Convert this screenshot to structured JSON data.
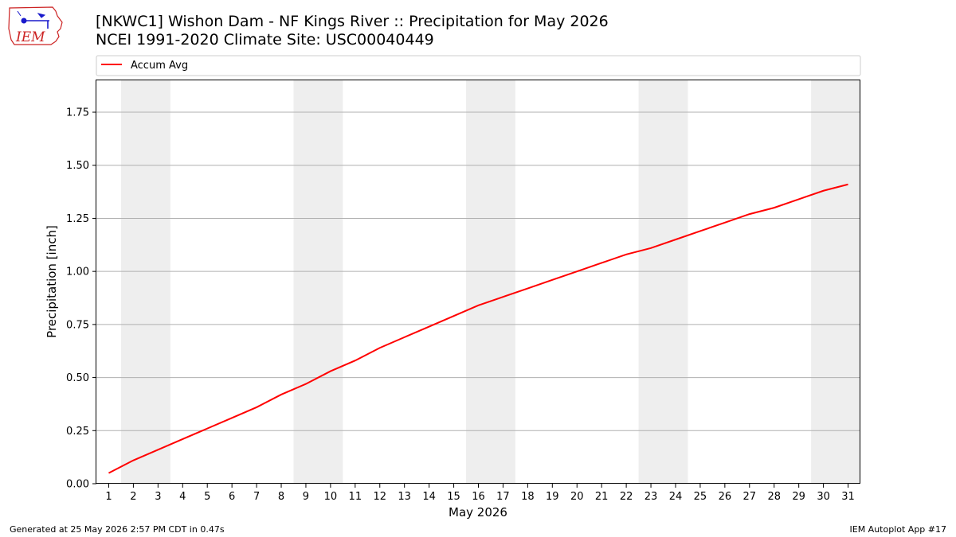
{
  "header": {
    "title_line1": "[NKWC1] Wishon Dam - NF Kings River :: Precipitation for May 2026",
    "title_line2": "NCEI 1991-2020 Climate Site: USC00040449"
  },
  "logo": {
    "text": "IEM",
    "icon": "iem-state-logo-icon"
  },
  "footer": {
    "left": "Generated at 25 May 2026 2:57 PM CDT in 0.47s",
    "right": "IEM Autoplot App #17"
  },
  "colors": {
    "series": "#ff0000",
    "weekend_band": "#eeeeee",
    "grid": "#b0b0b0",
    "logo_red": "#cc2222",
    "logo_blue": "#1a1acc"
  },
  "chart_data": {
    "type": "line",
    "xlabel": "May 2026",
    "ylabel": "Precipitation [inch]",
    "xlim": [
      0.5,
      31.5
    ],
    "ylim": [
      0,
      1.9
    ],
    "yticks": [
      0.0,
      0.25,
      0.5,
      0.75,
      1.0,
      1.25,
      1.5,
      1.75
    ],
    "ytick_labels": [
      "0.00",
      "0.25",
      "0.50",
      "0.75",
      "1.00",
      "1.25",
      "1.50",
      "1.75"
    ],
    "x": [
      1,
      2,
      3,
      4,
      5,
      6,
      7,
      8,
      9,
      10,
      11,
      12,
      13,
      14,
      15,
      16,
      17,
      18,
      19,
      20,
      21,
      22,
      23,
      24,
      25,
      26,
      27,
      28,
      29,
      30,
      31
    ],
    "xtick_labels": [
      "1",
      "2",
      "3",
      "4",
      "5",
      "6",
      "7",
      "8",
      "9",
      "10",
      "11",
      "12",
      "13",
      "14",
      "15",
      "16",
      "17",
      "18",
      "19",
      "20",
      "21",
      "22",
      "23",
      "24",
      "25",
      "26",
      "27",
      "28",
      "29",
      "30",
      "31"
    ],
    "grid": "horizontal",
    "legend_position": "top, above plot",
    "weekend_bands": [
      [
        2,
        3
      ],
      [
        9,
        10
      ],
      [
        16,
        17
      ],
      [
        23,
        24
      ],
      [
        30,
        31
      ]
    ],
    "series": [
      {
        "name": "Accum Avg",
        "color": "#ff0000",
        "values": [
          0.05,
          0.11,
          0.16,
          0.21,
          0.26,
          0.31,
          0.36,
          0.42,
          0.47,
          0.53,
          0.58,
          0.64,
          0.69,
          0.74,
          0.79,
          0.84,
          0.88,
          0.92,
          0.96,
          1.0,
          1.04,
          1.08,
          1.11,
          1.15,
          1.19,
          1.23,
          1.27,
          1.3,
          1.34,
          1.38,
          1.41
        ]
      }
    ]
  }
}
